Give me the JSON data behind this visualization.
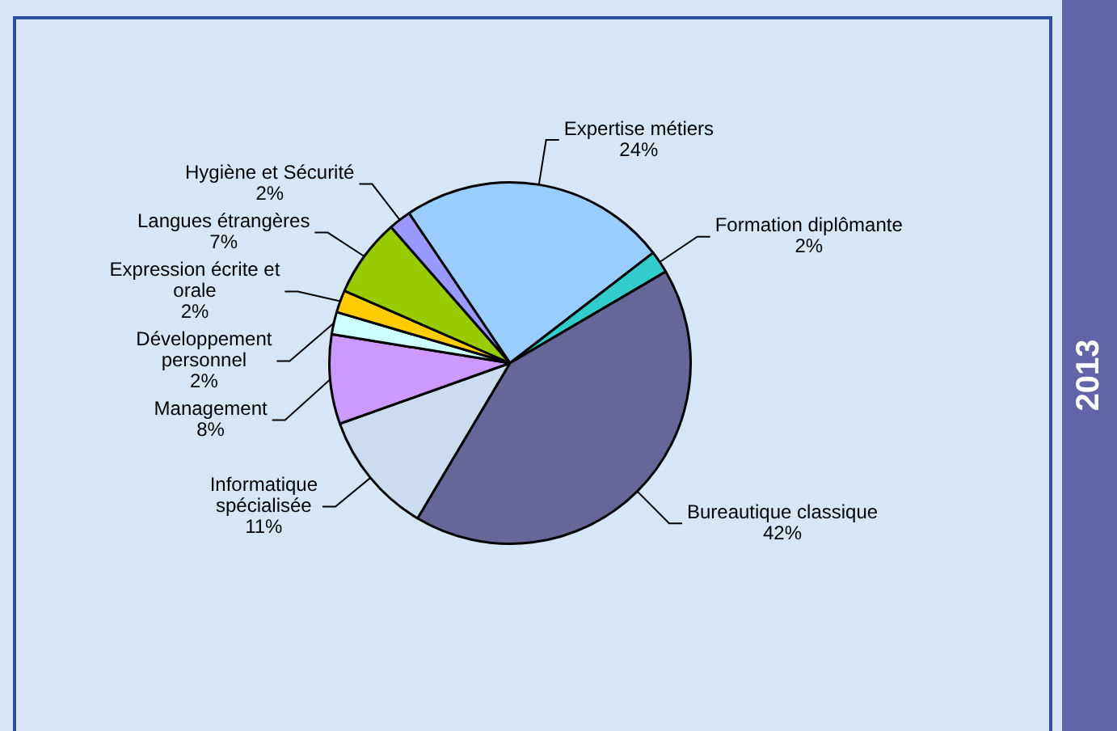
{
  "chart_data": {
    "type": "pie",
    "subtitle": "2013",
    "categories": [
      "Expertise métiers",
      "Formation diplômante",
      "Bureautique classique",
      "Informatique spécialisée",
      "Management",
      "Développement personnel",
      "Expression écrite et orale",
      "Langues étrangères",
      "Hygiène et Sécurité"
    ],
    "values": [
      24,
      2,
      42,
      11,
      8,
      2,
      2,
      7,
      2
    ],
    "value_labels": [
      "24%",
      "2%",
      "42%",
      "11%",
      "8%",
      "2%",
      "2%",
      "7%",
      "2%"
    ],
    "colors": [
      "#99ccff",
      "#33cccc",
      "#666699",
      "#ccdcf0",
      "#cc99ff",
      "#ccffff",
      "#ffcc00",
      "#99cc00",
      "#9999ff"
    ],
    "legend": false
  }
}
